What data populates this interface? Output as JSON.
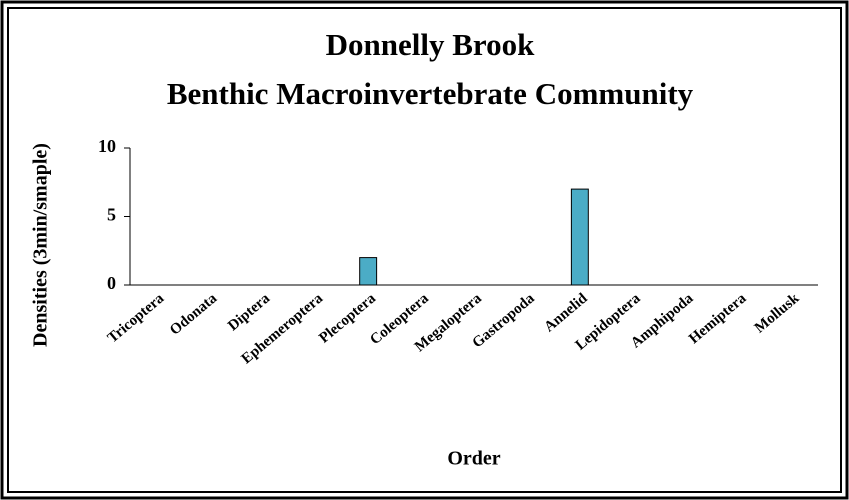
{
  "chart_data": {
    "type": "bar",
    "title": [
      "Donnelly Brook",
      "Benthic Macroinvertebrate Community"
    ],
    "x_label": "Order",
    "y_label": "Densities (3min/smaple)",
    "categories": [
      "Tricoptera",
      "Odonata",
      "Diptera",
      "Ephemeroptera",
      "Plecoptera",
      "Coleoptera",
      "Megaloptera",
      "Gastropoda",
      "Annelid",
      "Lepidoptera",
      "Amphipoda",
      "Hemiptera",
      "Mollusk"
    ],
    "values": [
      0,
      0,
      0,
      0,
      2,
      0,
      0,
      0,
      7,
      0,
      0,
      0,
      0
    ],
    "color": "#4bacc6",
    "ylim": [
      0,
      10
    ],
    "yticks": [
      0,
      5,
      10
    ],
    "grid": false
  }
}
